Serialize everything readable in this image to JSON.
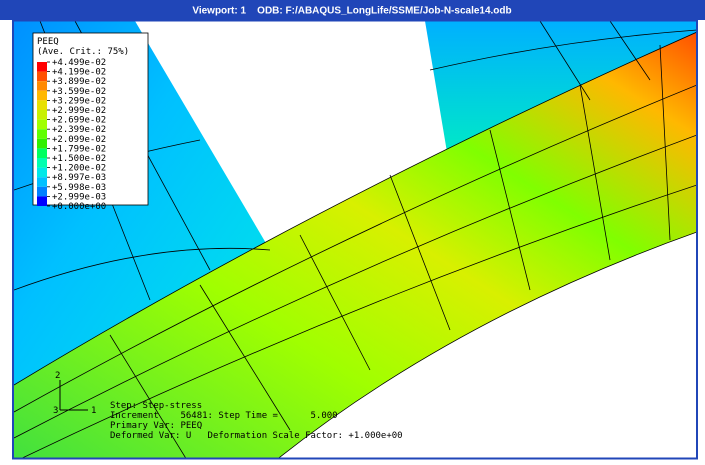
{
  "title_bar": "Viewport: 1    ODB: F:/ABAQUS_LongLife/SSME/Job-N-scale14.odb",
  "legend": {
    "title": "PEEQ",
    "subtitle": "(Ave. Crit.: 75%)",
    "labels": [
      "+4.499e-02",
      "+4.199e-02",
      "+3.899e-02",
      "+3.599e-02",
      "+3.299e-02",
      "+2.999e-02",
      "+2.699e-02",
      "+2.399e-02",
      "+2.099e-02",
      "+1.799e-02",
      "+1.500e-02",
      "+1.200e-02",
      "+8.997e-03",
      "+5.998e-03",
      "+2.999e-03",
      "+0.000e+00"
    ],
    "colors": [
      "#ff0000",
      "#ff5000",
      "#ff8a00",
      "#ffb800",
      "#e8e000",
      "#c8f000",
      "#a0ff00",
      "#60ff00",
      "#30f000",
      "#00ff60",
      "#00ffb0",
      "#00e8e8",
      "#00c0ff",
      "#0080ff",
      "#0000ff"
    ]
  },
  "status": {
    "lines": [
      "Step: Step-stress",
      "Increment    56481: Step Time =      5.000",
      "Primary Var: PEEQ",
      "Deformed Var: U   Deformation Scale Factor: +1.000e+00"
    ]
  },
  "triad": {
    "axes": [
      "1",
      "2",
      "3"
    ]
  }
}
